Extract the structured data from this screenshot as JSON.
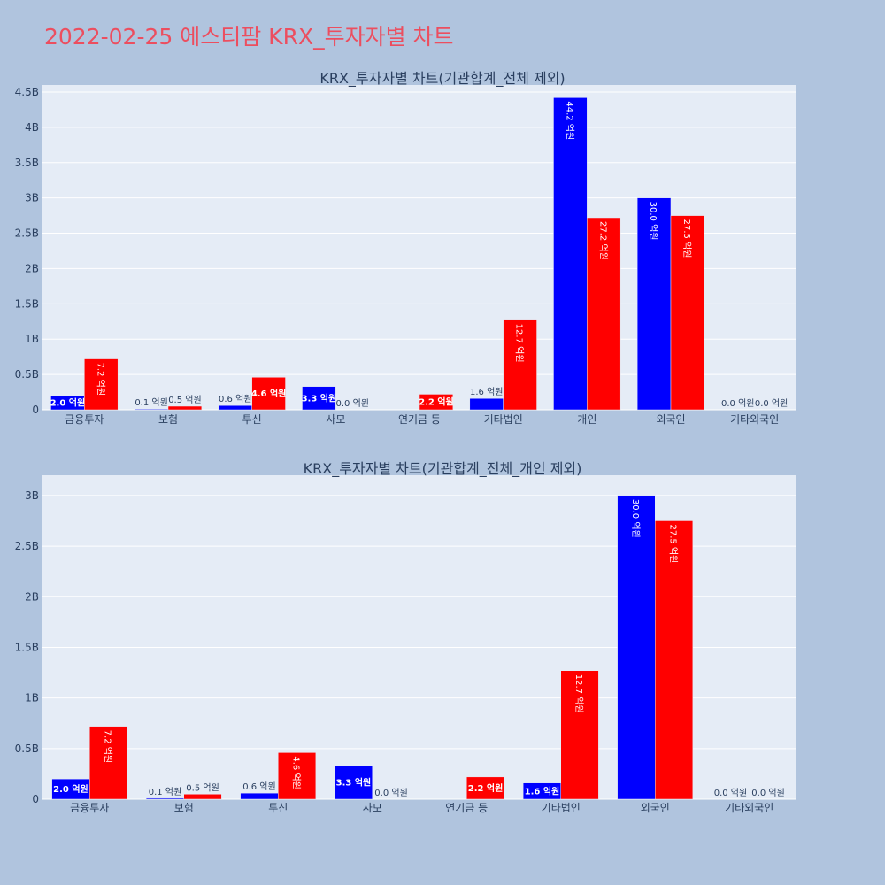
{
  "page": {
    "title": "2022-02-25 에스티팜 KRX_투자자별 차트"
  },
  "colors": {
    "page_bg": "#b0c4de",
    "plot_bg": "#e5ecf6",
    "buy": "#0000ff",
    "sell": "#ff0000",
    "title": "#ec4e5f"
  },
  "chart_data": [
    {
      "type": "bar",
      "title": "KRX_투자자별 차트(기관합계_전체 제외)",
      "categories": [
        "금융투자",
        "보험",
        "투신",
        "사모",
        "연기금 등",
        "기타법인",
        "개인",
        "외국인",
        "기타외국인"
      ],
      "ylim": [
        0,
        4.6
      ],
      "yticks": [
        0,
        0.5,
        1,
        1.5,
        2,
        2.5,
        3,
        3.5,
        4,
        4.5
      ],
      "ytick_labels": [
        "0",
        "0.5B",
        "1B",
        "1.5B",
        "2B",
        "2.5B",
        "3B",
        "3.5B",
        "4B",
        "4.5B"
      ],
      "grid": true,
      "series": [
        {
          "color": "#0000ff",
          "values": [
            0.2,
            0.01,
            0.06,
            0.33,
            0.0,
            0.16,
            4.42,
            3.0,
            0.0
          ],
          "labels": [
            "2.0 억원",
            "0.1 억원",
            "0.6 억원",
            "3.3 억원",
            "",
            "1.6 억원",
            "44.2 억원",
            "30.0 억원",
            "0.0 억원"
          ]
        },
        {
          "color": "#ff0000",
          "values": [
            0.72,
            0.05,
            0.46,
            0.0,
            0.22,
            1.27,
            2.72,
            2.75,
            0.0
          ],
          "labels": [
            "7.2 억원",
            "0.5 억원",
            "4.6 억원",
            "0.0 억원",
            "2.2 억원",
            "12.7 억원",
            "27.2 억원",
            "27.5 억원",
            "0.0 억원"
          ]
        }
      ]
    },
    {
      "type": "bar",
      "title": "KRX_투자자별 차트(기관합계_전체_개인 제외)",
      "categories": [
        "금융투자",
        "보험",
        "투신",
        "사모",
        "연기금 등",
        "기타법인",
        "외국인",
        "기타외국인"
      ],
      "ylim": [
        0,
        3.2
      ],
      "yticks": [
        0,
        0.5,
        1,
        1.5,
        2,
        2.5,
        3
      ],
      "ytick_labels": [
        "0",
        "0.5B",
        "1B",
        "1.5B",
        "2B",
        "2.5B",
        "3B"
      ],
      "grid": true,
      "series": [
        {
          "color": "#0000ff",
          "values": [
            0.2,
            0.01,
            0.06,
            0.33,
            0.0,
            0.16,
            3.0,
            0.0
          ],
          "labels": [
            "2.0 억원",
            "0.1 억원",
            "0.6 억원",
            "3.3 억원",
            "",
            "1.6 억원",
            "30.0 억원",
            "0.0 억원"
          ]
        },
        {
          "color": "#ff0000",
          "values": [
            0.72,
            0.05,
            0.46,
            0.0,
            0.22,
            1.27,
            2.75,
            0.0
          ],
          "labels": [
            "7.2 억원",
            "0.5 억원",
            "4.6 억원",
            "0.0 억원",
            "2.2 억원",
            "12.7 억원",
            "27.5 억원",
            "0.0 억원"
          ]
        }
      ]
    }
  ]
}
